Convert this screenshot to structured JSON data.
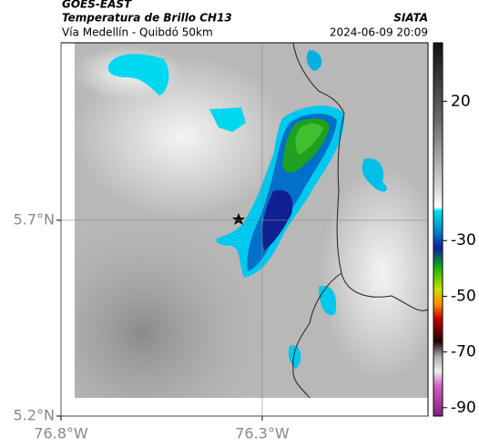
{
  "header": {
    "satellite": "GOES-EAST",
    "product": "Temperatura de Brillo CH13",
    "route": "Vía Medellín - Quibdó 50km",
    "source": "SIATA",
    "datetime": "2024-06-09 20:09"
  },
  "map": {
    "xlim": [
      -76.8,
      -75.888
    ],
    "ylim": [
      5.2,
      6.153
    ],
    "xticks": [
      {
        "value": -76.8,
        "label": "76.8°W"
      },
      {
        "value": -76.3,
        "label": "76.3°W"
      }
    ],
    "yticks": [
      {
        "value": 5.2,
        "label": "5.2°N"
      },
      {
        "value": 5.7,
        "label": "5.7°N"
      }
    ],
    "grid": true
  },
  "colorbar": {
    "lim": [
      41,
      -93
    ],
    "ticks": [
      20,
      -30,
      -50,
      -70,
      -90
    ]
  }
}
